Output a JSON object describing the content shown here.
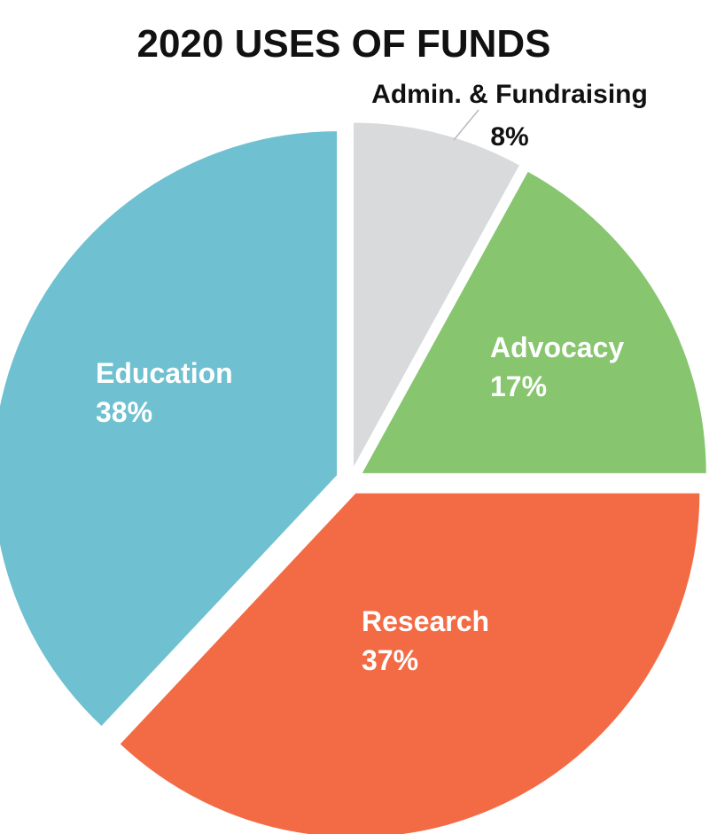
{
  "chart_data": {
    "type": "pie",
    "title": "2020 USES OF FUNDS",
    "slices": [
      {
        "label": "Admin. & Fundraising",
        "value": 8,
        "value_label": "8%",
        "color": "#d9dadc",
        "label_position": "outside",
        "label_color": "#111111"
      },
      {
        "label": "Advocacy",
        "value": 17,
        "value_label": "17%",
        "color": "#87c56f",
        "label_position": "inside",
        "label_color": "#ffffff"
      },
      {
        "label": "Research",
        "value": 37,
        "value_label": "37%",
        "color": "#f26b45",
        "label_position": "inside",
        "label_color": "#ffffff"
      },
      {
        "label": "Education",
        "value": 38,
        "value_label": "38%",
        "color": "#6fc0d0",
        "label_position": "inside",
        "label_color": "#ffffff"
      }
    ],
    "start": "top",
    "direction": "clockwise",
    "exploded": true,
    "legend": "none"
  }
}
